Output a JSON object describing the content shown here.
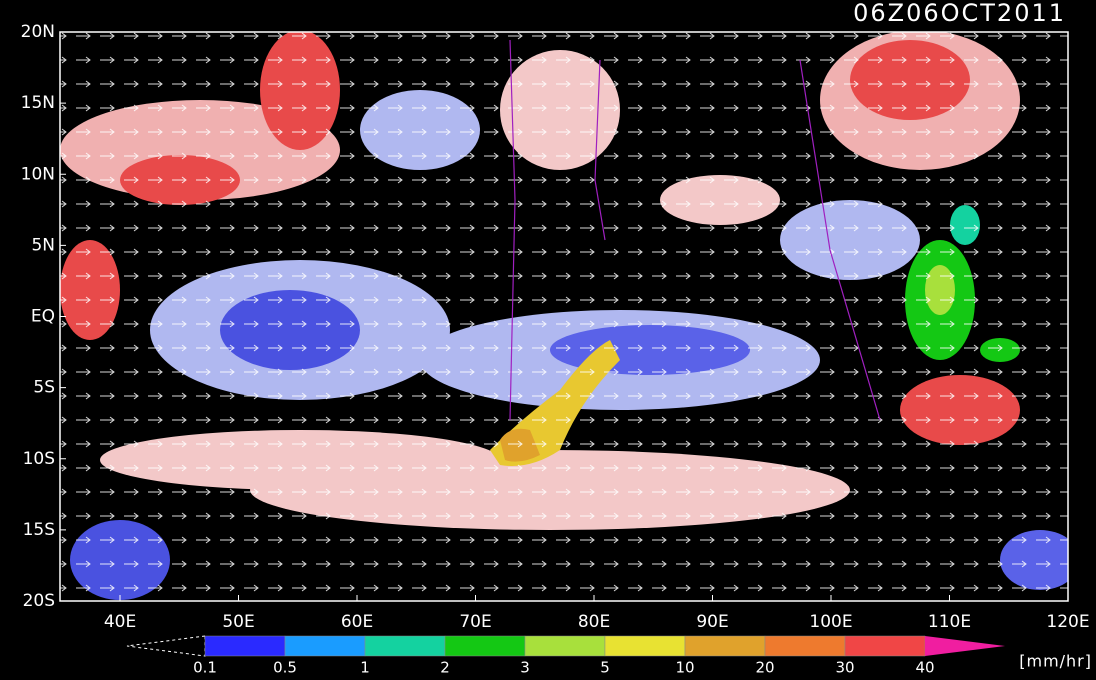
{
  "title": "06Z06OCT2011",
  "lat_labels": [
    "20N",
    "15N",
    "10N",
    "5N",
    "EQ",
    "5S",
    "10S",
    "15S",
    "20S"
  ],
  "lon_labels": [
    "40E",
    "50E",
    "60E",
    "70E",
    "80E",
    "90E",
    "100E",
    "110E",
    "120E"
  ],
  "colorbar": {
    "levels": [
      0.1,
      0.5,
      1,
      2,
      3,
      5,
      10,
      20,
      30,
      40
    ],
    "colors": [
      "#2a2aff",
      "#1a9cff",
      "#14d2a0",
      "#14c814",
      "#a8e03c",
      "#e8e232",
      "#e0a22c",
      "#ee7a2e",
      "#f04646"
    ],
    "over_color": "#f01ea0",
    "unit": "[mm/hr]"
  }
}
